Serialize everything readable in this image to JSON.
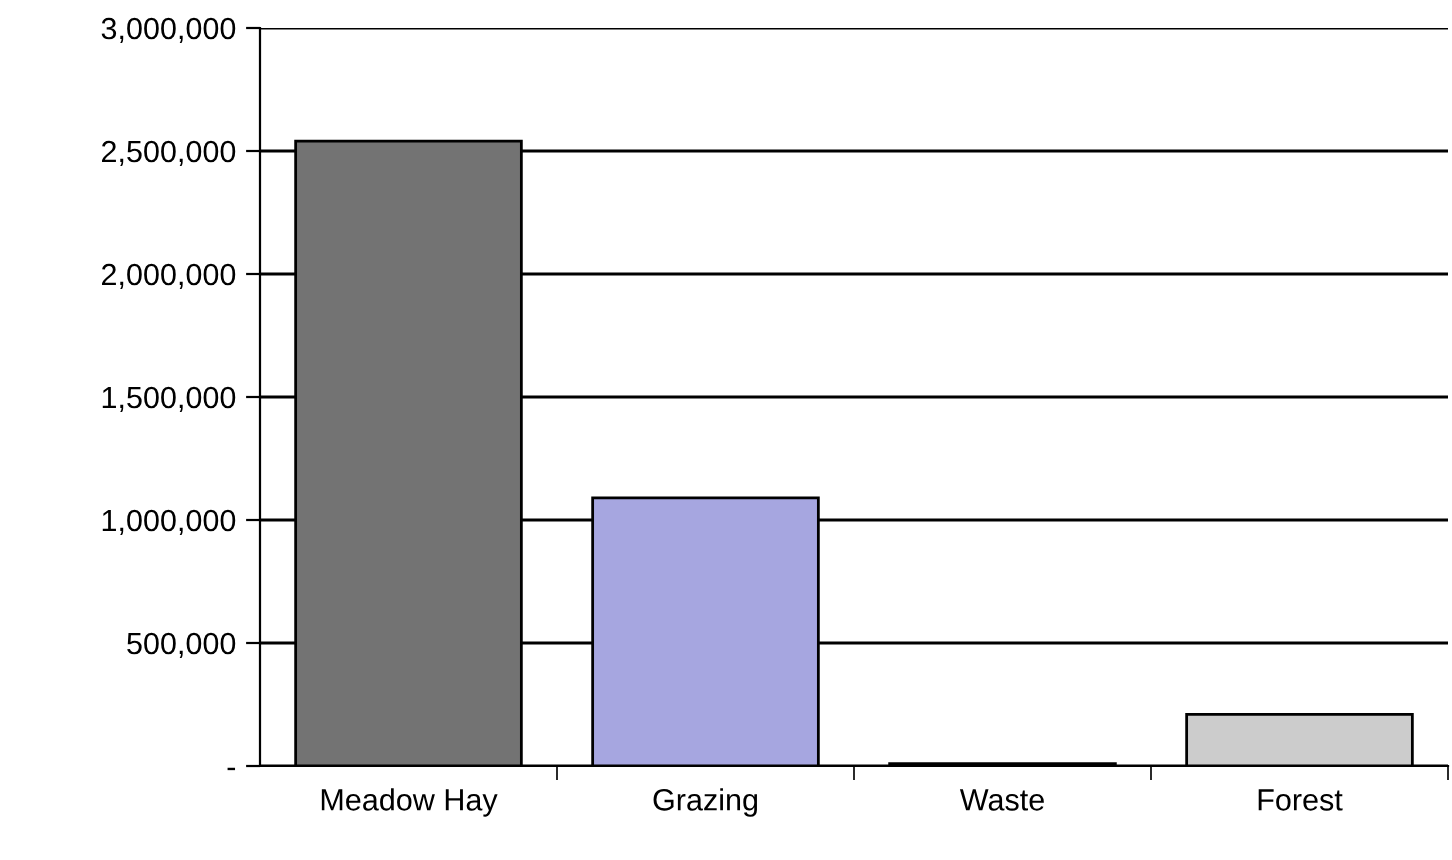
{
  "chart_data": {
    "type": "bar",
    "categories": [
      "Meadow Hay",
      "Grazing",
      "Waste",
      "Forest"
    ],
    "values": [
      2540000,
      1090000,
      10000,
      210000
    ],
    "colors": [
      "#737373",
      "#a6a6e0",
      "#333333",
      "#cccccc"
    ],
    "ylim": [
      0,
      3000000
    ],
    "yticks": [
      {
        "value": 0,
        "label": "-"
      },
      {
        "value": 500000,
        "label": "500,000"
      },
      {
        "value": 1000000,
        "label": "1,000,000"
      },
      {
        "value": 1500000,
        "label": "1,500,000"
      },
      {
        "value": 2000000,
        "label": "2,000,000"
      },
      {
        "value": 2500000,
        "label": "2,500,000"
      },
      {
        "value": 3000000,
        "label": "3,000,000"
      }
    ],
    "grid": "y",
    "legend": false
  }
}
